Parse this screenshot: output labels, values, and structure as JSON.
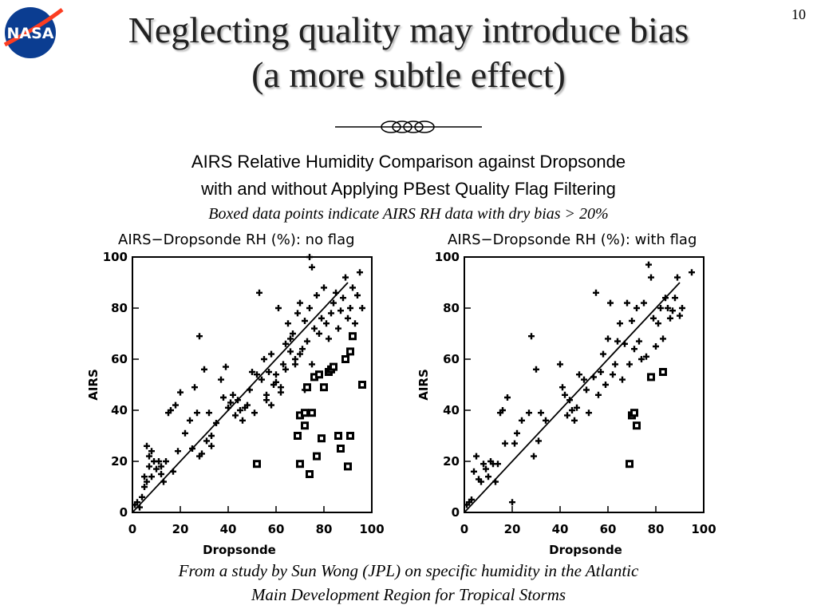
{
  "slide": {
    "number": "10",
    "logo_text": "NASA",
    "title_line1": "Neglecting quality may introduce bias",
    "title_line2": "(a more subtle effect)",
    "subtitle_line1": "AIRS Relative Humidity Comparison against Dropsonde",
    "subtitle_line2": "with and without Applying PBest Quality Flag Filtering",
    "subtitle_line3": "Boxed data points indicate AIRS RH data with dry bias > 20%",
    "footer_line1": "From a study by Sun Wong (JPL) on specific humidity in the Atlantic",
    "footer_line2": "Main Development Region for Tropical Storms"
  },
  "colors": {
    "logo_blue": "#0b3d91",
    "logo_red": "#fc3d21",
    "mark": "#000000"
  },
  "chart_data": [
    {
      "type": "scatter",
      "title": "AIRS−Dropsonde RH (%): no flag",
      "xlabel": "Dropsonde",
      "ylabel": "AIRS",
      "xlim": [
        0,
        100
      ],
      "ylim": [
        0,
        100
      ],
      "xticks": [
        "0",
        "20",
        "40",
        "60",
        "80",
        "100"
      ],
      "yticks": [
        "0",
        "20",
        "40",
        "60",
        "80",
        "100"
      ],
      "reference_line": [
        [
          0,
          0
        ],
        [
          90,
          90
        ]
      ],
      "series": [
        {
          "marker": "plus",
          "points": [
            [
              1,
              3
            ],
            [
              2,
              4
            ],
            [
              3,
              2
            ],
            [
              4,
              6
            ],
            [
              5,
              10
            ],
            [
              5,
              14
            ],
            [
              6,
              12
            ],
            [
              6,
              26
            ],
            [
              7,
              18
            ],
            [
              7,
              22
            ],
            [
              8,
              14
            ],
            [
              8,
              24
            ],
            [
              9,
              20
            ],
            [
              10,
              17
            ],
            [
              11,
              20
            ],
            [
              12,
              15
            ],
            [
              12,
              18
            ],
            [
              13,
              12
            ],
            [
              14,
              20
            ],
            [
              15,
              39
            ],
            [
              16,
              40
            ],
            [
              17,
              16
            ],
            [
              18,
              42
            ],
            [
              19,
              24
            ],
            [
              20,
              47
            ],
            [
              22,
              31
            ],
            [
              24,
              36
            ],
            [
              25,
              25
            ],
            [
              26,
              49
            ],
            [
              27,
              39
            ],
            [
              28,
              69
            ],
            [
              28,
              22
            ],
            [
              29,
              23
            ],
            [
              30,
              56
            ],
            [
              31,
              28
            ],
            [
              32,
              39
            ],
            [
              33,
              26
            ],
            [
              33,
              30
            ],
            [
              35,
              35
            ],
            [
              37,
              52
            ],
            [
              38,
              45
            ],
            [
              39,
              57
            ],
            [
              40,
              41
            ],
            [
              41,
              43
            ],
            [
              42,
              46
            ],
            [
              43,
              38
            ],
            [
              44,
              44
            ],
            [
              45,
              40
            ],
            [
              46,
              36
            ],
            [
              47,
              41
            ],
            [
              48,
              42
            ],
            [
              49,
              48
            ],
            [
              50,
              55
            ],
            [
              51,
              39
            ],
            [
              52,
              54
            ],
            [
              53,
              86
            ],
            [
              54,
              52
            ],
            [
              55,
              60
            ],
            [
              56,
              46
            ],
            [
              57,
              55
            ],
            [
              58,
              62
            ],
            [
              59,
              50
            ],
            [
              60,
              54
            ],
            [
              61,
              80
            ],
            [
              62,
              49
            ],
            [
              63,
              58
            ],
            [
              64,
              66
            ],
            [
              65,
              74
            ],
            [
              66,
              68
            ],
            [
              67,
              70
            ],
            [
              68,
              60
            ],
            [
              69,
              78
            ],
            [
              70,
              82
            ],
            [
              71,
              64
            ],
            [
              72,
              75
            ],
            [
              73,
              67
            ],
            [
              74,
              80
            ],
            [
              75,
              58
            ],
            [
              76,
              72
            ],
            [
              77,
              85
            ],
            [
              78,
              70
            ],
            [
              79,
              76
            ],
            [
              80,
              88
            ],
            [
              81,
              74
            ],
            [
              82,
              68
            ],
            [
              83,
              78
            ],
            [
              84,
              82
            ],
            [
              85,
              86
            ],
            [
              86,
              72
            ],
            [
              87,
              79
            ],
            [
              88,
              84
            ],
            [
              89,
              92
            ],
            [
              90,
              76
            ],
            [
              91,
              80
            ],
            [
              92,
              88
            ],
            [
              93,
              74
            ],
            [
              94,
              85
            ],
            [
              95,
              94
            ],
            [
              96,
              80
            ],
            [
              74,
              100
            ],
            [
              75,
              96
            ],
            [
              64,
              56
            ],
            [
              66,
              63
            ],
            [
              68,
              58
            ],
            [
              70,
              62
            ],
            [
              72,
              48
            ],
            [
              56,
              44
            ],
            [
              58,
              42
            ],
            [
              60,
              51
            ],
            [
              62,
              47
            ]
          ]
        },
        {
          "marker": "box",
          "points": [
            [
              52,
              19
            ],
            [
              69,
              30
            ],
            [
              70,
              19
            ],
            [
              70,
              38
            ],
            [
              72,
              39
            ],
            [
              72,
              34
            ],
            [
              73,
              49
            ],
            [
              74,
              15
            ],
            [
              75,
              39
            ],
            [
              76,
              53
            ],
            [
              77,
              22
            ],
            [
              78,
              54
            ],
            [
              79,
              29
            ],
            [
              80,
              49
            ],
            [
              82,
              55
            ],
            [
              83,
              56
            ],
            [
              84,
              57
            ],
            [
              86,
              30
            ],
            [
              87,
              25
            ],
            [
              89,
              60
            ],
            [
              90,
              18
            ],
            [
              91,
              30
            ],
            [
              91,
              63
            ],
            [
              92,
              69
            ],
            [
              96,
              50
            ]
          ]
        }
      ]
    },
    {
      "type": "scatter",
      "title": "AIRS−Dropsonde RH (%): with flag",
      "xlabel": "Dropsonde",
      "ylabel": "AIRS",
      "xlim": [
        0,
        100
      ],
      "ylim": [
        0,
        100
      ],
      "xticks": [
        "0",
        "20",
        "40",
        "60",
        "80",
        "100"
      ],
      "yticks": [
        "0",
        "20",
        "40",
        "60",
        "80",
        "100"
      ],
      "reference_line": [
        [
          0,
          0
        ],
        [
          90,
          90
        ]
      ],
      "series": [
        {
          "marker": "plus",
          "points": [
            [
              1,
              3
            ],
            [
              2,
              4
            ],
            [
              3,
              5
            ],
            [
              4,
              16
            ],
            [
              5,
              22
            ],
            [
              6,
              13
            ],
            [
              7,
              12
            ],
            [
              8,
              19
            ],
            [
              9,
              17
            ],
            [
              10,
              14
            ],
            [
              11,
              20
            ],
            [
              12,
              19
            ],
            [
              13,
              12
            ],
            [
              14,
              19
            ],
            [
              15,
              39
            ],
            [
              16,
              40
            ],
            [
              17,
              27
            ],
            [
              18,
              45
            ],
            [
              20,
              4
            ],
            [
              21,
              27
            ],
            [
              22,
              31
            ],
            [
              24,
              36
            ],
            [
              27,
              39
            ],
            [
              28,
              69
            ],
            [
              29,
              22
            ],
            [
              30,
              56
            ],
            [
              31,
              28
            ],
            [
              32,
              39
            ],
            [
              34,
              36
            ],
            [
              40,
              58
            ],
            [
              41,
              49
            ],
            [
              42,
              46
            ],
            [
              43,
              38
            ],
            [
              44,
              44
            ],
            [
              45,
              40
            ],
            [
              46,
              36
            ],
            [
              47,
              41
            ],
            [
              48,
              54
            ],
            [
              50,
              52
            ],
            [
              51,
              48
            ],
            [
              52,
              39
            ],
            [
              54,
              53
            ],
            [
              55,
              86
            ],
            [
              56,
              46
            ],
            [
              57,
              55
            ],
            [
              58,
              62
            ],
            [
              59,
              50
            ],
            [
              60,
              68
            ],
            [
              61,
              82
            ],
            [
              62,
              54
            ],
            [
              63,
              58
            ],
            [
              64,
              67
            ],
            [
              65,
              74
            ],
            [
              66,
              52
            ],
            [
              67,
              66
            ],
            [
              68,
              82
            ],
            [
              69,
              58
            ],
            [
              70,
              75
            ],
            [
              71,
              64
            ],
            [
              72,
              80
            ],
            [
              73,
              67
            ],
            [
              74,
              60
            ],
            [
              75,
              82
            ],
            [
              76,
              61
            ],
            [
              77,
              97
            ],
            [
              78,
              92
            ],
            [
              79,
              76
            ],
            [
              80,
              65
            ],
            [
              81,
              74
            ],
            [
              82,
              80
            ],
            [
              83,
              68
            ],
            [
              84,
              84
            ],
            [
              85,
              80
            ],
            [
              86,
              76
            ],
            [
              87,
              79
            ],
            [
              88,
              84
            ],
            [
              89,
              92
            ],
            [
              90,
              77
            ],
            [
              91,
              80
            ],
            [
              95,
              94
            ]
          ]
        },
        {
          "marker": "box",
          "points": [
            [
              69,
              19
            ],
            [
              70,
              38
            ],
            [
              71,
              39
            ],
            [
              72,
              34
            ],
            [
              78,
              53
            ],
            [
              83,
              55
            ]
          ]
        }
      ]
    }
  ]
}
